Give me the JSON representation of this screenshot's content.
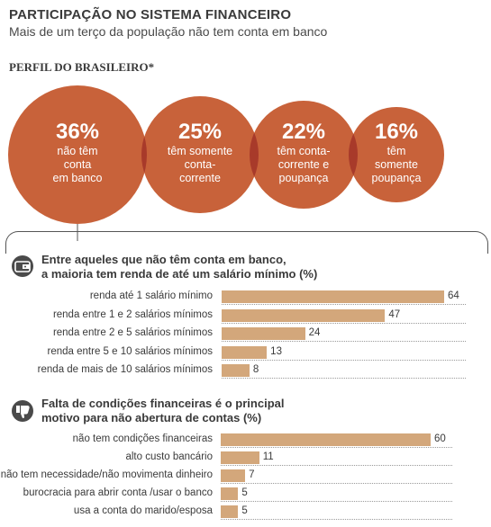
{
  "header": {
    "title": "PARTICIPAÇÃO NO SISTEMA FINANCEIRO",
    "subtitle": "Mais de um terço da população não tem conta em banco"
  },
  "perfil": {
    "title": "PERFIL DO BRASILEIRO*",
    "bubble_color": "#c8623a",
    "overlap_color": "#a83a2a"
  },
  "chart_data": [
    {
      "type": "bubble",
      "title": "PERFIL DO BRASILEIRO*",
      "categories": [
        "não têm conta em banco",
        "têm somente conta-corrente",
        "têm conta-corrente e poupança",
        "têm somente poupança"
      ],
      "values": [
        36,
        25,
        22,
        16
      ],
      "unit": "%",
      "items": [
        {
          "value": "36%",
          "lines": [
            "não têm",
            "conta",
            "em banco"
          ]
        },
        {
          "value": "25%",
          "lines": [
            "têm somente",
            "conta-",
            "corrente"
          ]
        },
        {
          "value": "22%",
          "lines": [
            "têm conta-",
            "corrente e",
            "poupança"
          ]
        },
        {
          "value": "16%",
          "lines": [
            "têm",
            "somente",
            "poupança"
          ]
        }
      ]
    },
    {
      "type": "bar",
      "orientation": "horizontal",
      "title_lines": [
        "Entre aqueles que não têm conta em banco,",
        "a maioria tem renda de até um salário mínimo (%)"
      ],
      "categories": [
        "renda até 1 salário mínimo",
        "renda entre 1 e 2 salários mínimos",
        "renda entre 2 e 5 salários mínimos",
        "renda entre 5 e 10 salários mínimos",
        "renda de mais de 10 salários mínimos"
      ],
      "values": [
        64,
        47,
        24,
        13,
        8
      ],
      "xlim": [
        0,
        64
      ],
      "bar_color": "#d3a77b"
    },
    {
      "type": "bar",
      "orientation": "horizontal",
      "title_lines": [
        "Falta de condições financeiras é o principal",
        "motivo para não abertura de contas (%)"
      ],
      "categories": [
        "não tem condições financeiras",
        "alto custo bancário",
        "não tem necessidade/não movimenta dinheiro",
        "burocracia para abrir conta /usar o banco",
        "usa a conta do marido/esposa"
      ],
      "values": [
        60,
        11,
        7,
        5,
        5
      ],
      "xlim": [
        0,
        60
      ],
      "bar_color": "#d3a77b"
    }
  ],
  "icons": {
    "section1": "wallet-icon",
    "section2": "thumbs-down-icon"
  }
}
